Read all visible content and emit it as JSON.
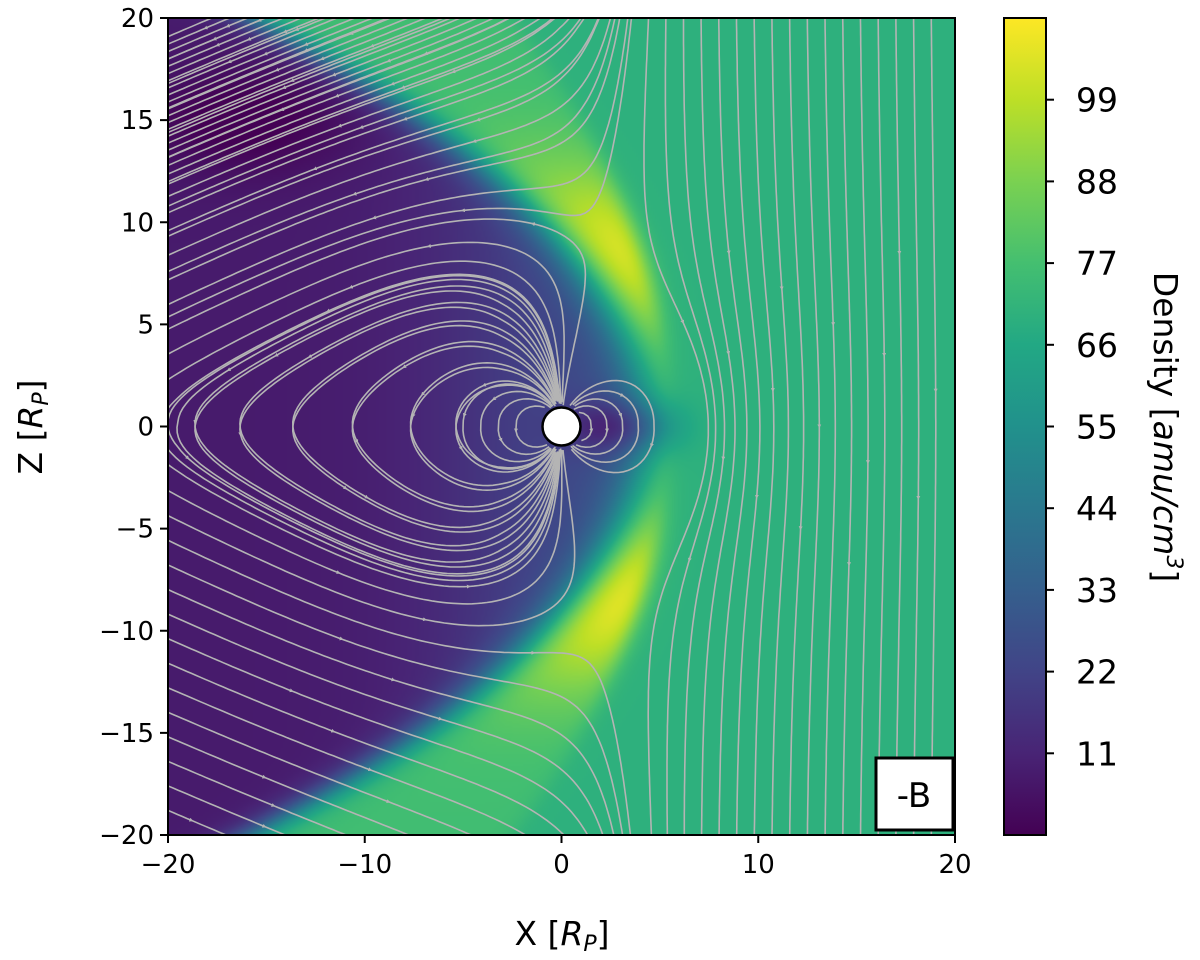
{
  "chart_data": {
    "type": "heatmap",
    "description_free": true,
    "xlabel": "X [",
    "xlabel_sym": "R",
    "xlabel_sub": "P",
    "xlabel_end": "]",
    "ylabel": "Z [",
    "ylabel_sym": "R",
    "ylabel_sub": "P",
    "ylabel_end": "]",
    "xlim": [
      -20,
      20
    ],
    "ylim": [
      -20,
      20
    ],
    "xticks": [
      -20,
      -10,
      0,
      10,
      20
    ],
    "yticks": [
      -20,
      -15,
      -10,
      -5,
      0,
      5,
      10,
      15,
      20
    ],
    "xtick_labels": [
      "−20",
      "−10",
      "0",
      "10",
      "20"
    ],
    "ytick_labels": [
      "−20",
      "−15",
      "−10",
      "−5",
      "0",
      "5",
      "10",
      "15",
      "20"
    ],
    "panel_label": "-B",
    "colorbar": {
      "label_pre": "Density [",
      "label_units": "amu/cm",
      "label_sup": "3",
      "label_end": "]",
      "range": [
        0,
        110
      ],
      "ticks": [
        11,
        22,
        33,
        44,
        55,
        66,
        77,
        88,
        99
      ],
      "tick_labels": [
        "11",
        "22",
        "33",
        "44",
        "55",
        "66",
        "77",
        "88",
        "99"
      ],
      "colormap": "viridis"
    },
    "field_regions": {
      "solar_wind_density": 70,
      "magnetosheath_peak_density": 104,
      "magnetosphere_density": 8,
      "bow_shock_nose_x": 5.5,
      "planet_radius": 1
    },
    "streamline_color": "#b4b4b4",
    "planet_color": "#ffffff"
  }
}
